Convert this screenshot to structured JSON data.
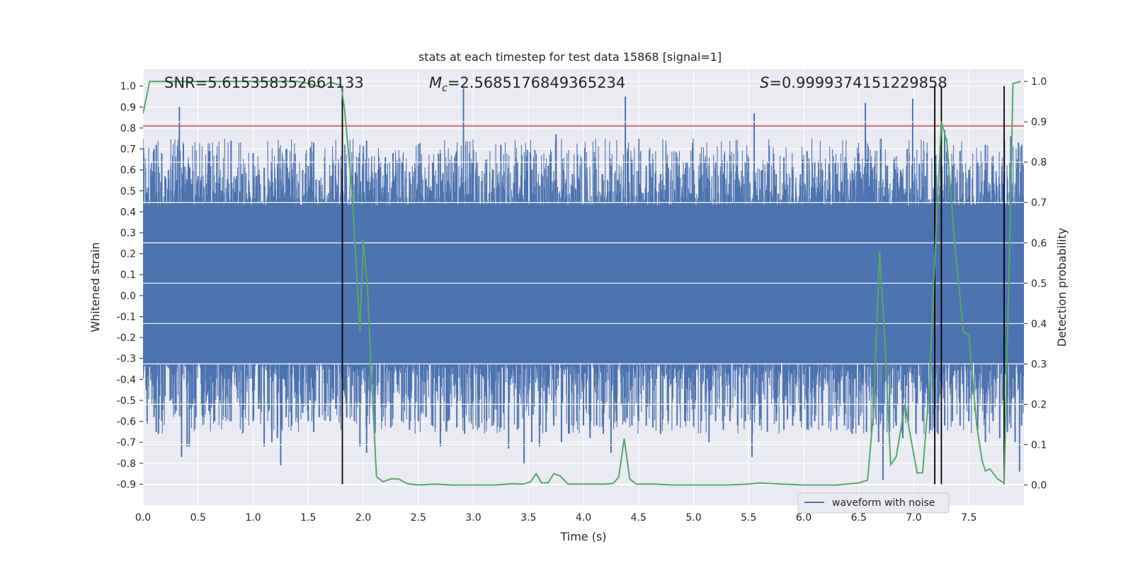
{
  "chart_data": {
    "type": "line",
    "title": "stats at each timestep for test data 15868 [signal=1]",
    "xlabel": "Time (s)",
    "ylabel": "Whitened strain",
    "y2label": "Detection probability",
    "xlim": [
      0,
      8.0
    ],
    "ylim": [
      -1.0,
      1.08
    ],
    "y2lim": [
      -0.05,
      1.03
    ],
    "xticks": [
      "0.0",
      "0.5",
      "1.0",
      "1.5",
      "2.0",
      "2.5",
      "3.0",
      "3.5",
      "4.0",
      "4.5",
      "5.0",
      "5.5",
      "6.0",
      "6.5",
      "7.0",
      "7.5"
    ],
    "yticks": [
      "1.0",
      "0.9",
      "0.8",
      "0.7",
      "0.6",
      "0.5",
      "0.4",
      "0.3",
      "0.2",
      "0.1",
      "0.0",
      "-0.1",
      "-0.2",
      "-0.3",
      "-0.4",
      "-0.5",
      "-0.6",
      "-0.7",
      "-0.8",
      "-0.9"
    ],
    "y2ticks": [
      "1.0",
      "0.9",
      "0.8",
      "0.7",
      "0.6",
      "0.5",
      "0.4",
      "0.3",
      "0.2",
      "0.1",
      "0.0"
    ],
    "annotations": {
      "snr": "SNR=5.615358352661133",
      "mc_symbol": "M",
      "mc_sub": "c",
      "mc_value": "=2.5685176849365234",
      "s_symbol": "S",
      "s_value": "=0.9999374151229858"
    },
    "legend": {
      "label": "waveform with noise",
      "location": "lower-right"
    },
    "threshold_line": {
      "y": 0.81,
      "color": "#c44e52"
    },
    "vertical_lines": [
      {
        "x": 1.81,
        "ymin": -0.9,
        "ymax": 0.99
      },
      {
        "x": 7.19,
        "ymin": -0.9,
        "ymax": 1.0
      },
      {
        "x": 7.25,
        "ymin": -0.9,
        "ymax": 1.0
      },
      {
        "x": 7.82,
        "ymin": -0.9,
        "ymax": 1.0
      }
    ],
    "strain_series": {
      "name": "waveform with noise",
      "color": "#4c72b0",
      "dense_band": [
        -0.32,
        0.43
      ],
      "spikes": [
        [
          0.03,
          0.49
        ],
        [
          0.1,
          0.7
        ],
        [
          0.12,
          0.72
        ],
        [
          0.14,
          0.5
        ],
        [
          0.17,
          0.68
        ],
        [
          0.2,
          0.57
        ],
        [
          0.23,
          0.6
        ],
        [
          0.27,
          0.52
        ],
        [
          0.3,
          0.55
        ],
        [
          0.33,
          0.9
        ],
        [
          0.36,
          0.58
        ],
        [
          0.4,
          0.55
        ],
        [
          0.45,
          0.52
        ],
        [
          0.5,
          0.57
        ],
        [
          0.55,
          0.52
        ],
        [
          0.6,
          0.55
        ],
        [
          0.64,
          0.5
        ],
        [
          0.69,
          0.56
        ],
        [
          0.72,
          0.5
        ],
        [
          0.8,
          0.74
        ],
        [
          0.85,
          0.57
        ],
        [
          0.9,
          0.58
        ],
        [
          0.96,
          0.55
        ],
        [
          1.0,
          0.68
        ],
        [
          1.03,
          0.57
        ],
        [
          1.1,
          0.61
        ],
        [
          1.17,
          0.6
        ],
        [
          1.2,
          0.56
        ],
        [
          1.25,
          0.55
        ],
        [
          1.3,
          0.7
        ],
        [
          1.35,
          0.55
        ],
        [
          1.45,
          0.6
        ],
        [
          1.5,
          0.62
        ],
        [
          1.55,
          0.73
        ],
        [
          1.6,
          0.55
        ],
        [
          1.65,
          0.66
        ],
        [
          1.7,
          0.57
        ],
        [
          1.75,
          0.55
        ],
        [
          1.8,
          0.6
        ],
        [
          1.9,
          0.55
        ],
        [
          2.0,
          0.68
        ],
        [
          2.03,
          0.74
        ],
        [
          2.08,
          0.59
        ],
        [
          2.15,
          0.61
        ],
        [
          2.2,
          0.66
        ],
        [
          2.27,
          0.68
        ],
        [
          2.35,
          0.64
        ],
        [
          2.42,
          0.59
        ],
        [
          2.5,
          0.62
        ],
        [
          2.57,
          0.55
        ],
        [
          2.63,
          0.64
        ],
        [
          2.7,
          0.68
        ],
        [
          2.77,
          0.55
        ],
        [
          2.85,
          0.61
        ],
        [
          2.91,
          0.99
        ],
        [
          2.97,
          0.58
        ],
        [
          3.05,
          0.57
        ],
        [
          3.12,
          0.65
        ],
        [
          3.18,
          0.6
        ],
        [
          3.25,
          0.72
        ],
        [
          3.32,
          0.61
        ],
        [
          3.4,
          0.64
        ],
        [
          3.48,
          0.57
        ],
        [
          3.55,
          0.66
        ],
        [
          3.62,
          0.58
        ],
        [
          3.68,
          0.62
        ],
        [
          3.75,
          0.77
        ],
        [
          3.82,
          0.6
        ],
        [
          3.9,
          0.58
        ],
        [
          3.97,
          0.62
        ],
        [
          4.03,
          0.61
        ],
        [
          4.1,
          0.66
        ],
        [
          4.17,
          0.58
        ],
        [
          4.25,
          0.62
        ],
        [
          4.31,
          0.55
        ],
        [
          4.38,
          0.95
        ],
        [
          4.44,
          0.65
        ],
        [
          4.5,
          0.59
        ],
        [
          4.57,
          0.62
        ],
        [
          4.63,
          0.65
        ],
        [
          4.7,
          0.58
        ],
        [
          4.77,
          0.61
        ],
        [
          4.85,
          0.66
        ],
        [
          4.92,
          0.58
        ],
        [
          5.0,
          0.6
        ],
        [
          5.07,
          0.64
        ],
        [
          5.14,
          0.62
        ],
        [
          5.2,
          0.64
        ],
        [
          5.27,
          0.58
        ],
        [
          5.33,
          0.67
        ],
        [
          5.4,
          0.58
        ],
        [
          5.47,
          0.64
        ],
        [
          5.55,
          0.87
        ],
        [
          5.62,
          0.6
        ],
        [
          5.68,
          0.63
        ],
        [
          5.75,
          0.58
        ],
        [
          5.82,
          0.66
        ],
        [
          5.9,
          0.6
        ],
        [
          5.97,
          0.58
        ],
        [
          6.03,
          0.69
        ],
        [
          6.1,
          0.64
        ],
        [
          6.17,
          0.6
        ],
        [
          6.23,
          0.62
        ],
        [
          6.3,
          0.58
        ],
        [
          6.37,
          0.64
        ],
        [
          6.44,
          0.6
        ],
        [
          6.5,
          0.68
        ],
        [
          6.56,
          0.92
        ],
        [
          6.62,
          0.6
        ],
        [
          6.7,
          0.7
        ],
        [
          6.76,
          0.62
        ],
        [
          6.82,
          0.65
        ],
        [
          6.88,
          0.6
        ],
        [
          6.94,
          0.7
        ],
        [
          6.99,
          0.94
        ],
        [
          7.05,
          0.63
        ],
        [
          7.12,
          0.68
        ],
        [
          7.2,
          0.67
        ],
        [
          7.28,
          0.79
        ],
        [
          7.35,
          0.62
        ],
        [
          7.42,
          0.69
        ],
        [
          7.5,
          0.6
        ],
        [
          7.58,
          0.64
        ],
        [
          7.65,
          0.72
        ],
        [
          7.72,
          0.62
        ],
        [
          7.8,
          0.62
        ],
        [
          7.88,
          0.76
        ],
        [
          7.95,
          0.73
        ],
        [
          7.98,
          0.72
        ],
        [
          0.03,
          -0.45
        ],
        [
          0.1,
          -0.58
        ],
        [
          0.12,
          -0.65
        ],
        [
          0.14,
          -0.66
        ],
        [
          0.17,
          -0.6
        ],
        [
          0.2,
          -0.48
        ],
        [
          0.25,
          -0.5
        ],
        [
          0.3,
          -0.55
        ],
        [
          0.35,
          -0.77
        ],
        [
          0.4,
          -0.72
        ],
        [
          0.42,
          -0.72
        ],
        [
          0.48,
          -0.58
        ],
        [
          0.55,
          -0.58
        ],
        [
          0.6,
          -0.55
        ],
        [
          0.65,
          -0.6
        ],
        [
          0.7,
          -0.5
        ],
        [
          0.75,
          -0.58
        ],
        [
          0.8,
          -0.6
        ],
        [
          0.9,
          -0.58
        ],
        [
          1.0,
          -0.6
        ],
        [
          1.05,
          -0.54
        ],
        [
          1.1,
          -0.72
        ],
        [
          1.17,
          -0.7
        ],
        [
          1.22,
          -0.68
        ],
        [
          1.25,
          -0.81
        ],
        [
          1.3,
          -0.58
        ],
        [
          1.35,
          -0.62
        ],
        [
          1.45,
          -0.56
        ],
        [
          1.5,
          -0.6
        ],
        [
          1.55,
          -0.65
        ],
        [
          1.6,
          -0.58
        ],
        [
          1.65,
          -0.55
        ],
        [
          1.7,
          -0.6
        ],
        [
          1.75,
          -0.54
        ],
        [
          1.85,
          -0.58
        ],
        [
          1.92,
          -0.6
        ],
        [
          1.97,
          -0.72
        ],
        [
          2.03,
          -0.75
        ],
        [
          2.1,
          -0.65
        ],
        [
          2.17,
          -0.6
        ],
        [
          2.25,
          -0.63
        ],
        [
          2.35,
          -0.6
        ],
        [
          2.42,
          -0.64
        ],
        [
          2.5,
          -0.6
        ],
        [
          2.57,
          -0.58
        ],
        [
          2.63,
          -0.62
        ],
        [
          2.7,
          -0.72
        ],
        [
          2.77,
          -0.6
        ],
        [
          2.85,
          -0.63
        ],
        [
          2.92,
          -0.66
        ],
        [
          2.98,
          -0.6
        ],
        [
          3.05,
          -0.63
        ],
        [
          3.12,
          -0.6
        ],
        [
          3.18,
          -0.62
        ],
        [
          3.25,
          -0.63
        ],
        [
          3.32,
          -0.73
        ],
        [
          3.4,
          -0.64
        ],
        [
          3.46,
          -0.8
        ],
        [
          3.53,
          -0.7
        ],
        [
          3.6,
          -0.72
        ],
        [
          3.66,
          -0.65
        ],
        [
          3.73,
          -0.62
        ],
        [
          3.8,
          -0.7
        ],
        [
          3.87,
          -0.66
        ],
        [
          3.94,
          -0.6
        ],
        [
          4.0,
          -0.62
        ],
        [
          4.06,
          -0.68
        ],
        [
          4.12,
          -0.62
        ],
        [
          4.18,
          -0.66
        ],
        [
          4.25,
          -0.75
        ],
        [
          4.3,
          -0.6
        ],
        [
          4.37,
          -0.6
        ],
        [
          4.44,
          -0.62
        ],
        [
          4.5,
          -0.6
        ],
        [
          4.57,
          -0.62
        ],
        [
          4.63,
          -0.63
        ],
        [
          4.7,
          -0.66
        ],
        [
          4.77,
          -0.6
        ],
        [
          4.85,
          -0.62
        ],
        [
          4.92,
          -0.6
        ],
        [
          5.0,
          -0.62
        ],
        [
          5.07,
          -0.6
        ],
        [
          5.14,
          -0.7
        ],
        [
          5.2,
          -0.6
        ],
        [
          5.27,
          -0.64
        ],
        [
          5.33,
          -0.6
        ],
        [
          5.4,
          -0.62
        ],
        [
          5.47,
          -0.6
        ],
        [
          5.53,
          -0.77
        ],
        [
          5.6,
          -0.62
        ],
        [
          5.67,
          -0.65
        ],
        [
          5.75,
          -0.6
        ],
        [
          5.82,
          -0.64
        ],
        [
          5.9,
          -0.62
        ],
        [
          5.97,
          -0.6
        ],
        [
          6.03,
          -0.64
        ],
        [
          6.1,
          -0.6
        ],
        [
          6.17,
          -0.62
        ],
        [
          6.23,
          -0.6
        ],
        [
          6.3,
          -0.64
        ],
        [
          6.37,
          -0.62
        ],
        [
          6.44,
          -0.66
        ],
        [
          6.5,
          -0.62
        ],
        [
          6.57,
          -0.65
        ],
        [
          6.63,
          -0.62
        ],
        [
          6.68,
          -0.7
        ],
        [
          6.72,
          -0.88
        ],
        [
          6.78,
          -0.65
        ],
        [
          6.84,
          -0.62
        ],
        [
          6.9,
          -0.68
        ],
        [
          6.95,
          -0.6
        ],
        [
          7.02,
          -0.66
        ],
        [
          7.08,
          -0.6
        ],
        [
          7.15,
          -0.64
        ],
        [
          7.22,
          -0.66
        ],
        [
          7.28,
          -0.62
        ],
        [
          7.35,
          -0.6
        ],
        [
          7.42,
          -0.62
        ],
        [
          7.5,
          -0.6
        ],
        [
          7.58,
          -0.64
        ],
        [
          7.65,
          -0.7
        ],
        [
          7.72,
          -0.6
        ],
        [
          7.78,
          -0.68
        ],
        [
          7.85,
          -0.65
        ],
        [
          7.92,
          -0.7
        ],
        [
          7.96,
          -0.84
        ]
      ]
    },
    "probability_series": {
      "color": "#55a868",
      "points": [
        [
          0.0,
          0.92
        ],
        [
          0.06,
          1.0
        ],
        [
          0.2,
          1.0
        ],
        [
          0.5,
          1.0
        ],
        [
          0.8,
          1.0
        ],
        [
          1.1,
          1.0
        ],
        [
          1.4,
          1.0
        ],
        [
          1.5,
          0.995
        ],
        [
          1.62,
          0.985
        ],
        [
          1.7,
          0.998
        ],
        [
          1.8,
          0.99
        ],
        [
          1.83,
          0.93
        ],
        [
          1.9,
          0.72
        ],
        [
          1.94,
          0.52
        ],
        [
          1.97,
          0.38
        ],
        [
          2.0,
          0.61
        ],
        [
          2.04,
          0.48
        ],
        [
          2.08,
          0.24
        ],
        [
          2.12,
          0.02
        ],
        [
          2.18,
          0.008
        ],
        [
          2.25,
          0.015
        ],
        [
          2.32,
          0.015
        ],
        [
          2.4,
          0.003
        ],
        [
          2.5,
          0.0
        ],
        [
          2.65,
          0.002
        ],
        [
          2.8,
          0.0
        ],
        [
          3.0,
          0.0
        ],
        [
          3.2,
          0.0
        ],
        [
          3.35,
          0.003
        ],
        [
          3.45,
          0.002
        ],
        [
          3.52,
          0.008
        ],
        [
          3.57,
          0.028
        ],
        [
          3.62,
          0.005
        ],
        [
          3.68,
          0.006
        ],
        [
          3.73,
          0.028
        ],
        [
          3.79,
          0.022
        ],
        [
          3.86,
          0.002
        ],
        [
          4.0,
          0.002
        ],
        [
          4.2,
          0.002
        ],
        [
          4.27,
          0.004
        ],
        [
          4.32,
          0.02
        ],
        [
          4.37,
          0.115
        ],
        [
          4.42,
          0.015
        ],
        [
          4.48,
          0.002
        ],
        [
          4.65,
          0.002
        ],
        [
          4.8,
          0.0
        ],
        [
          5.0,
          0.0
        ],
        [
          5.3,
          0.0
        ],
        [
          5.5,
          0.002
        ],
        [
          5.6,
          0.005
        ],
        [
          5.8,
          0.002
        ],
        [
          6.0,
          0.0
        ],
        [
          6.3,
          0.0
        ],
        [
          6.5,
          0.005
        ],
        [
          6.58,
          0.012
        ],
        [
          6.63,
          0.17
        ],
        [
          6.69,
          0.58
        ],
        [
          6.74,
          0.34
        ],
        [
          6.79,
          0.05
        ],
        [
          6.84,
          0.07
        ],
        [
          6.92,
          0.2
        ],
        [
          6.97,
          0.12
        ],
        [
          7.03,
          0.03
        ],
        [
          7.08,
          0.03
        ],
        [
          7.14,
          0.24
        ],
        [
          7.2,
          0.62
        ],
        [
          7.25,
          0.9
        ],
        [
          7.3,
          0.85
        ],
        [
          7.37,
          0.6
        ],
        [
          7.45,
          0.38
        ],
        [
          7.5,
          0.37
        ],
        [
          7.57,
          0.15
        ],
        [
          7.62,
          0.06
        ],
        [
          7.65,
          0.035
        ],
        [
          7.69,
          0.04
        ],
        [
          7.76,
          0.015
        ],
        [
          7.82,
          0.005
        ],
        [
          7.87,
          0.59
        ],
        [
          7.9,
          0.995
        ],
        [
          7.97,
          1.0
        ]
      ]
    }
  }
}
